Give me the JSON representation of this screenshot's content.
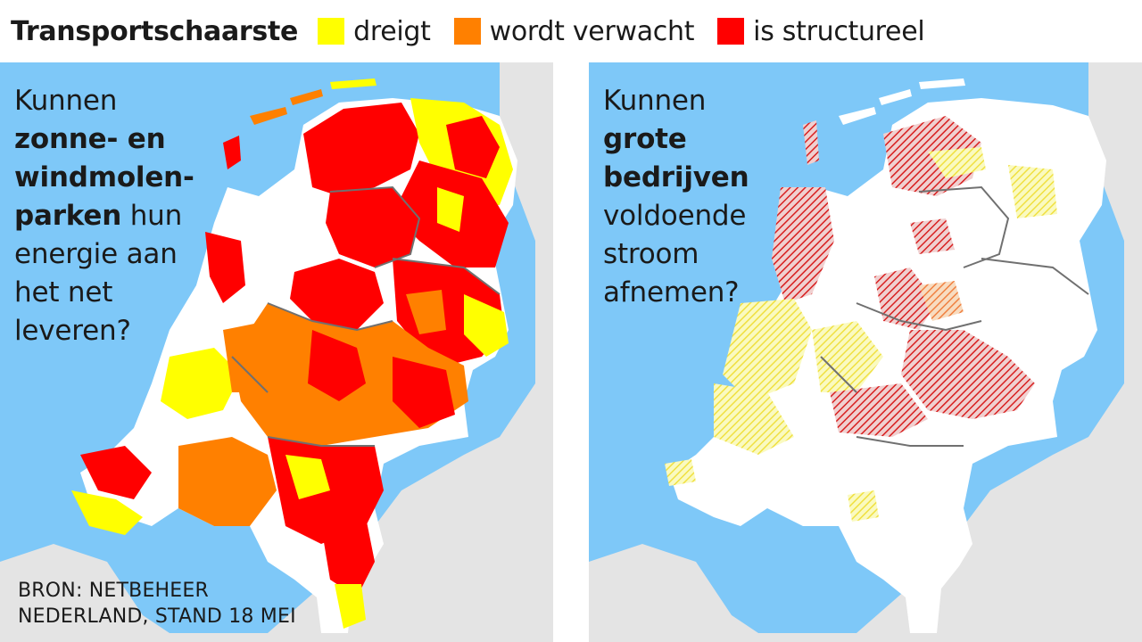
{
  "legend": {
    "title": "Transportschaarste",
    "items": [
      {
        "label": "dreigt",
        "color": "#ffff00"
      },
      {
        "label": "wordt verwacht",
        "color": "#ff8000"
      },
      {
        "label": "is structureel",
        "color": "#ff0000"
      }
    ]
  },
  "colors": {
    "sea": "#7ec8f8",
    "foreign_land": "#e4e4e4",
    "netherlands": "#ffffff",
    "borders": "#707070"
  },
  "left_map": {
    "question": {
      "line1": "Kunnen",
      "line2": "zonne- en",
      "line3": "windmolen-",
      "line4_bold": "parken",
      "line4_rest": " hun",
      "line5": "energie aan",
      "line6": "het net",
      "line7": "leveren?"
    },
    "source": {
      "line1": "BRON: NETBEHEER",
      "line2": "NEDERLAND, STAND 18 MEI"
    }
  },
  "right_map": {
    "question": {
      "line1": "Kunnen",
      "line2": "grote",
      "line3": "bedrijven",
      "line4": "voldoende",
      "line5": "stroom",
      "line6": "afnemen?"
    }
  }
}
